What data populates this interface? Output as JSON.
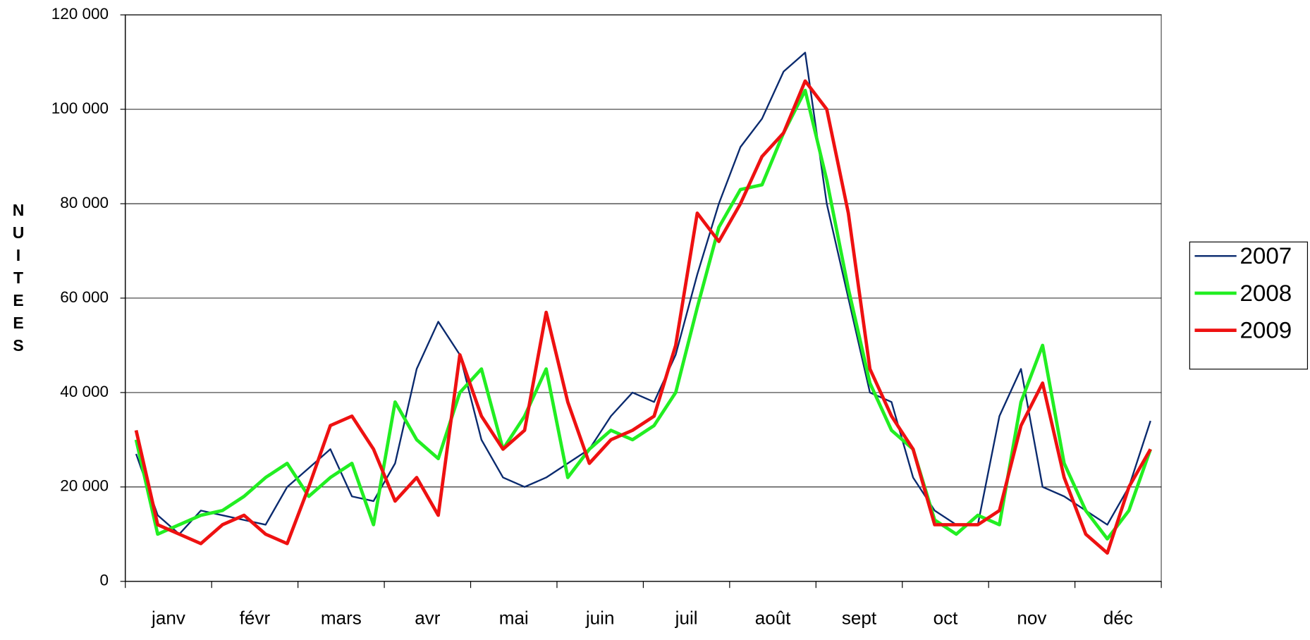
{
  "chart_data": {
    "type": "line",
    "y_label": "NUITEES",
    "categories": [
      null,
      "janv",
      null,
      null,
      null,
      "févr",
      null,
      null,
      null,
      "mars",
      null,
      null,
      null,
      "avr",
      null,
      null,
      null,
      "mai",
      null,
      null,
      null,
      "juin",
      null,
      null,
      null,
      "juil",
      null,
      null,
      null,
      "août",
      null,
      null,
      null,
      "sept",
      null,
      null,
      null,
      "oct",
      null,
      null,
      null,
      "nov",
      null,
      null,
      null,
      "déc",
      null,
      null
    ],
    "series": [
      {
        "name": "2007",
        "color": "#0a2a6e",
        "values": [
          27000,
          14000,
          10000,
          15000,
          14000,
          13000,
          12000,
          20000,
          24000,
          28000,
          18000,
          17000,
          25000,
          45000,
          55000,
          48000,
          30000,
          22000,
          20000,
          22000,
          25000,
          28000,
          35000,
          40000,
          38000,
          48000,
          65000,
          80000,
          92000,
          98000,
          108000,
          112000,
          80000,
          60000,
          40000,
          38000,
          22000,
          15000,
          12000,
          12000,
          35000,
          45000,
          20000,
          18000,
          15000,
          12000,
          20000,
          34000
        ]
      },
      {
        "name": "2008",
        "color": "#22ee22",
        "values": [
          30000,
          10000,
          12000,
          14000,
          15000,
          18000,
          22000,
          25000,
          18000,
          22000,
          25000,
          12000,
          38000,
          30000,
          26000,
          40000,
          45000,
          28000,
          35000,
          45000,
          22000,
          28000,
          32000,
          30000,
          33000,
          40000,
          58000,
          75000,
          83000,
          84000,
          95000,
          104000,
          85000,
          62000,
          42000,
          32000,
          28000,
          13000,
          10000,
          14000,
          12000,
          38000,
          50000,
          25000,
          15000,
          9000,
          15000,
          28000
        ]
      },
      {
        "name": "2009",
        "color": "#ee1111",
        "values": [
          32000,
          12000,
          10000,
          8000,
          12000,
          14000,
          10000,
          8000,
          20000,
          33000,
          35000,
          28000,
          17000,
          22000,
          14000,
          48000,
          35000,
          28000,
          32000,
          57000,
          38000,
          25000,
          30000,
          32000,
          35000,
          50000,
          78000,
          72000,
          80000,
          90000,
          95000,
          106000,
          100000,
          78000,
          45000,
          35000,
          28000,
          12000,
          12000,
          12000,
          15000,
          33000,
          42000,
          22000,
          10000,
          6000,
          20000,
          28000
        ]
      }
    ],
    "ylim": [
      0,
      120000
    ],
    "yticks": [
      0,
      {
        "value": 20000,
        "label": "20 000"
      },
      {
        "value": 40000,
        "label": "40 000"
      },
      {
        "value": 60000,
        "label": "60 000"
      },
      {
        "value": 80000,
        "label": "80 000"
      },
      {
        "value": 100000,
        "label": "100 000"
      },
      {
        "value": 120000,
        "label": "120 000"
      }
    ],
    "grid": true
  }
}
